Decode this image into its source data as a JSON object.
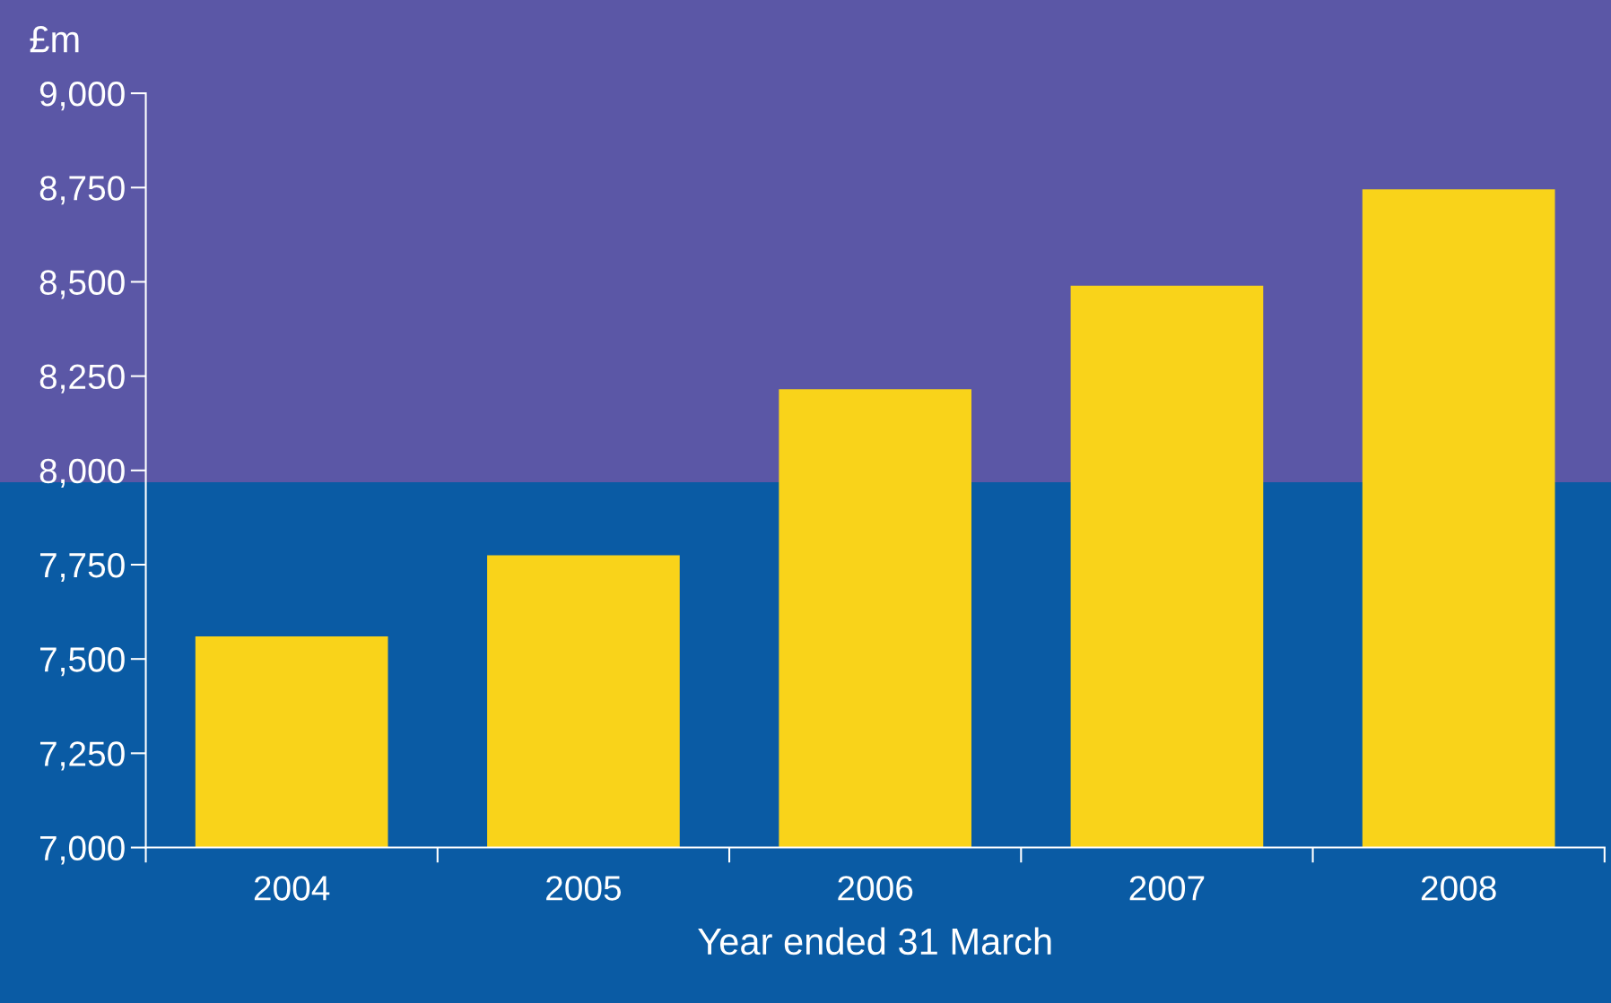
{
  "chart_data": {
    "type": "bar",
    "ylabel": "£m",
    "xlabel": "Year ended 31 March",
    "categories": [
      "2004",
      "2005",
      "2006",
      "2007",
      "2008"
    ],
    "values": [
      7560,
      7775,
      8215,
      8490,
      8745
    ],
    "color": "#f9d31a",
    "ylim": [
      7000,
      9000
    ],
    "yticks": [
      {
        "value": 7000,
        "label": "7,000"
      },
      {
        "value": 7250,
        "label": "7,250"
      },
      {
        "value": 7500,
        "label": "7,500"
      },
      {
        "value": 7750,
        "label": "7,750"
      },
      {
        "value": 8000,
        "label": "8,000"
      },
      {
        "value": 8250,
        "label": "8,250"
      },
      {
        "value": 8500,
        "label": "8,500"
      },
      {
        "value": 8750,
        "label": "8,750"
      },
      {
        "value": 9000,
        "label": "9,000"
      }
    ],
    "grid": false,
    "legend": false
  }
}
